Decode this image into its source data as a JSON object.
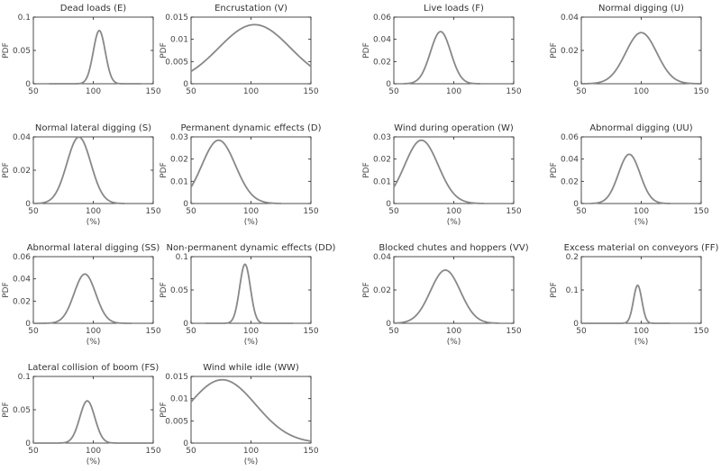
{
  "chart_data": [
    {
      "type": "line",
      "title": "Dead loads (E)",
      "xlabel": "",
      "ylabel": "PDF",
      "xlim": [
        50,
        150
      ],
      "ylim": [
        0,
        0.1
      ],
      "xticks": [
        "50",
        "100",
        "150"
      ],
      "yticks": [
        "0",
        "0.05",
        "0.1"
      ],
      "mean": 105,
      "sd": 5,
      "xmin": 63,
      "xmax": 140
    },
    {
      "type": "line",
      "title": "Encrustation (V)",
      "xlabel": "",
      "ylabel": "PDF",
      "xlim": [
        50,
        150
      ],
      "ylim": [
        0,
        0.015
      ],
      "xticks": [
        "50",
        "100",
        "150"
      ],
      "yticks": [
        "0",
        "0.005",
        "0.01",
        "0.015"
      ],
      "mean": 103,
      "sd": 30,
      "xmin": 50,
      "xmax": 150
    },
    {
      "type": "line",
      "title": "Live loads (F)",
      "xlabel": "",
      "ylabel": "PDF",
      "xlim": [
        50,
        150
      ],
      "ylim": [
        0,
        0.06
      ],
      "xticks": [
        "50",
        "100",
        "150"
      ],
      "yticks": [
        "0",
        "0.02",
        "0.04",
        "0.06"
      ],
      "mean": 89,
      "sd": 8.5,
      "xmin": 58,
      "xmax": 122
    },
    {
      "type": "line",
      "title": "Normal digging (U)",
      "xlabel": "",
      "ylabel": "PDF",
      "xlim": [
        50,
        150
      ],
      "ylim": [
        0,
        0.04
      ],
      "xticks": [
        "50",
        "100",
        "150"
      ],
      "yticks": [
        "0",
        "0.02",
        "0.04"
      ],
      "mean": 100,
      "sd": 13,
      "xmin": 52,
      "xmax": 148
    },
    {
      "type": "line",
      "title": "Normal lateral digging (S)",
      "xlabel": "(%)",
      "ylabel": "PDF",
      "xlim": [
        50,
        150
      ],
      "ylim": [
        0,
        0.04
      ],
      "xticks": [
        "50",
        "100",
        "150"
      ],
      "yticks": [
        "0",
        "0.02",
        "0.04"
      ],
      "mean": 88,
      "sd": 10,
      "xmin": 50,
      "xmax": 126
    },
    {
      "type": "line",
      "title": "Permanent dynamic effects (D)",
      "xlabel": "(%)",
      "ylabel": "PDF",
      "xlim": [
        50,
        150
      ],
      "ylim": [
        0,
        0.03
      ],
      "xticks": [
        "50",
        "100",
        "150"
      ],
      "yticks": [
        "0",
        "0.01",
        "0.02",
        "0.03"
      ],
      "mean": 73,
      "sd": 14,
      "xmin": 50,
      "xmax": 125
    },
    {
      "type": "line",
      "title": "Wind during operation (W)",
      "xlabel": "(%)",
      "ylabel": "PDF",
      "xlim": [
        50,
        150
      ],
      "ylim": [
        0,
        0.03
      ],
      "xticks": [
        "50",
        "100",
        "150"
      ],
      "yticks": [
        "0",
        "0.01",
        "0.02",
        "0.03"
      ],
      "mean": 73,
      "sd": 14,
      "xmin": 50,
      "xmax": 125
    },
    {
      "type": "line",
      "title": "Abnormal digging (UU)",
      "xlabel": "(%)",
      "ylabel": "PDF",
      "xlim": [
        50,
        150
      ],
      "ylim": [
        0,
        0.06
      ],
      "xticks": [
        "50",
        "100",
        "150"
      ],
      "yticks": [
        "0",
        "0.02",
        "0.04",
        "0.06"
      ],
      "mean": 90,
      "sd": 9,
      "xmin": 58,
      "xmax": 124
    },
    {
      "type": "line",
      "title": "Abnormal lateral digging (SS)",
      "xlabel": "(%)",
      "ylabel": "PDF",
      "xlim": [
        50,
        150
      ],
      "ylim": [
        0,
        0.06
      ],
      "xticks": [
        "50",
        "100",
        "150"
      ],
      "yticks": [
        "0",
        "0.02",
        "0.04",
        "0.06"
      ],
      "mean": 93,
      "sd": 9,
      "xmin": 50,
      "xmax": 132
    },
    {
      "type": "line",
      "title": "Non-permanent dynamic effects (DD)",
      "xlabel": "(%)",
      "ylabel": "PDF",
      "xlim": [
        50,
        150
      ],
      "ylim": [
        0,
        0.1
      ],
      "xticks": [
        "50",
        "100",
        "150"
      ],
      "yticks": [
        "0",
        "0.05",
        "0.1"
      ],
      "mean": 95,
      "sd": 4.5,
      "xmin": 62,
      "xmax": 135
    },
    {
      "type": "line",
      "title": "Blocked chutes and hoppers (VV)",
      "xlabel": "(%)",
      "ylabel": "PDF",
      "xlim": [
        50,
        150
      ],
      "ylim": [
        0,
        0.04
      ],
      "xticks": [
        "50",
        "100",
        "150"
      ],
      "yticks": [
        "0",
        "0.02",
        "0.04"
      ],
      "mean": 93,
      "sd": 12.5,
      "xmin": 50,
      "xmax": 138
    },
    {
      "type": "line",
      "title": "Excess material on conveyors (FF)",
      "xlabel": "(%)",
      "ylabel": "PDF",
      "xlim": [
        50,
        150
      ],
      "ylim": [
        0,
        0.2
      ],
      "xticks": [
        "50",
        "100",
        "150"
      ],
      "yticks": [
        "0",
        "0.1",
        "0.2"
      ],
      "mean": 97,
      "sd": 3.5,
      "xmin": 50,
      "xmax": 124
    },
    {
      "type": "line",
      "title": "Lateral collision of boom (FS)",
      "xlabel": "(%)",
      "ylabel": "PDF",
      "xlim": [
        50,
        150
      ],
      "ylim": [
        0,
        0.1
      ],
      "xticks": [
        "50",
        "100",
        "150"
      ],
      "yticks": [
        "0",
        "0.05",
        "0.1"
      ],
      "mean": 95,
      "sd": 6.3,
      "xmin": 50,
      "xmax": 148
    },
    {
      "type": "line",
      "title": "Wind while idle (WW)",
      "xlabel": "(%)",
      "ylabel": "PDF",
      "xlim": [
        50,
        150
      ],
      "ylim": [
        0,
        0.015
      ],
      "xticks": [
        "50",
        "100",
        "150"
      ],
      "yticks": [
        "0",
        "0.005",
        "0.01",
        "0.015"
      ],
      "mean": 76,
      "sd": 28,
      "xmin": 50,
      "xmax": 150
    }
  ]
}
